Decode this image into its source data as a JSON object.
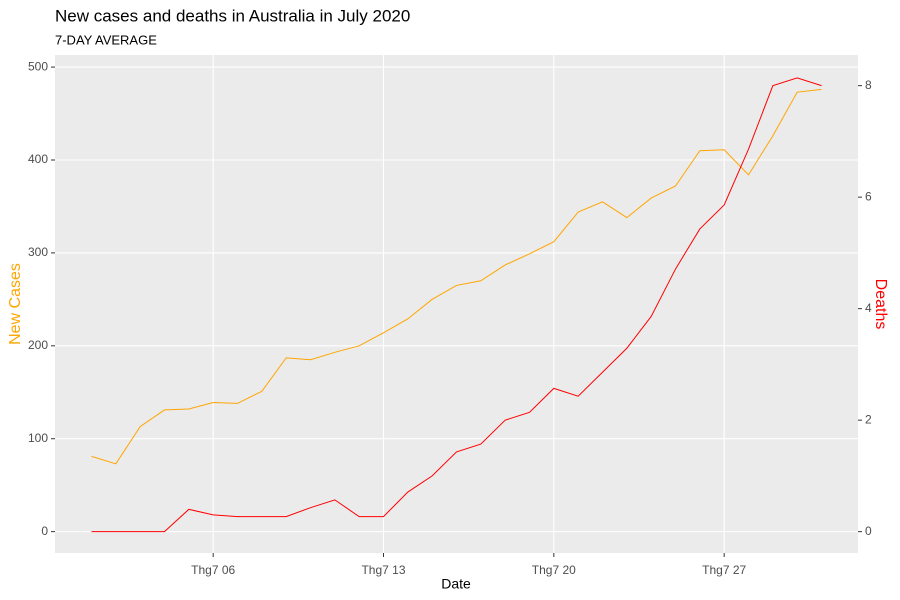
{
  "chart_data": {
    "type": "line",
    "title": "New cases and deaths in Australia in July 2020",
    "subtitle": "7-DAY AVERAGE",
    "x_label": "Date",
    "y_label": "New Cases",
    "y2_label": "Deaths",
    "x": [
      1,
      2,
      3,
      4,
      5,
      6,
      7,
      8,
      9,
      10,
      11,
      12,
      13,
      14,
      15,
      16,
      17,
      18,
      19,
      20,
      21,
      22,
      23,
      24,
      25,
      26,
      27,
      28,
      29,
      30,
      31
    ],
    "xlim": [
      -0.5,
      32.5
    ],
    "xticks": [
      {
        "value": 6,
        "label": "Thg7 06"
      },
      {
        "value": 13,
        "label": "Thg7 13"
      },
      {
        "value": 20,
        "label": "Thg7 20"
      },
      {
        "value": 27,
        "label": "Thg7 27"
      }
    ],
    "ylim": [
      -23,
      513
    ],
    "yticks": [
      0,
      100,
      200,
      300,
      400,
      500
    ],
    "y2lim": [
      -0.383,
      8.55
    ],
    "y2ticks": [
      0,
      2,
      4,
      6,
      8
    ],
    "grid": true,
    "series": [
      {
        "color": "#FFA500",
        "axis": "y",
        "values": [
          81,
          73,
          113,
          131,
          132,
          139,
          138,
          151,
          187,
          185,
          193,
          200,
          214,
          229,
          250,
          265,
          270,
          287,
          299,
          312,
          344,
          355,
          338,
          359,
          372,
          410,
          411,
          384,
          426,
          473,
          476
        ]
      },
      {
        "color": "#FF0000",
        "axis": "y2",
        "values": [
          0,
          0,
          0,
          0,
          0.4,
          0.3,
          0.27,
          0.27,
          0.27,
          0.43,
          0.57,
          0.27,
          0.27,
          0.71,
          1.0,
          1.43,
          1.57,
          2.0,
          2.14,
          2.57,
          2.43,
          2.86,
          3.29,
          3.86,
          4.71,
          5.43,
          5.86,
          6.86,
          8.0,
          8.14,
          8.0
        ]
      }
    ]
  }
}
